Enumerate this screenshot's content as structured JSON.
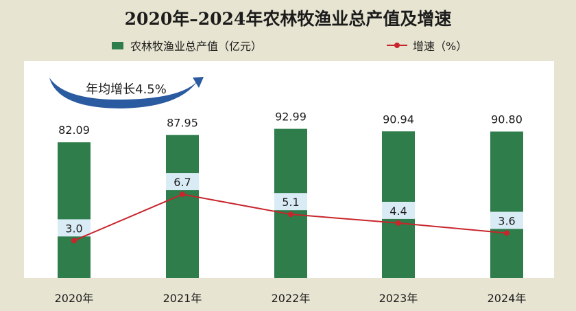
{
  "title": "2020年–2024年农林牧渔业总产值及增速",
  "colors": {
    "bar": "#2e7d4a",
    "line": "#c8252c",
    "label_box": "#d9ebf5",
    "background": "#e7e5d1",
    "plot_background": "#ffffff",
    "arrow": "#2a5aa0"
  },
  "annotation": "年均增长4.5%",
  "chart_data": {
    "type": "bar+line",
    "categories": [
      "2020年",
      "2021年",
      "2022年",
      "2023年",
      "2024年"
    ],
    "series": [
      {
        "name": "农林牧渔业总产值（亿元）",
        "type": "bar",
        "values": [
          82.09,
          87.95,
          92.99,
          90.94,
          90.8
        ],
        "value_labels": [
          "82.09",
          "87.95",
          "92.99",
          "90.94",
          "90.80"
        ]
      },
      {
        "name": "增速（%）",
        "type": "line",
        "values": [
          3.0,
          6.7,
          5.1,
          4.4,
          3.6
        ],
        "value_labels": [
          "3.0",
          "6.7",
          "5.1",
          "4.4",
          "3.6"
        ]
      }
    ],
    "legend": {
      "position": "top",
      "bar_label": "农林牧渔业总产值（亿元）",
      "line_label": "增速（%）"
    },
    "grid": false
  }
}
